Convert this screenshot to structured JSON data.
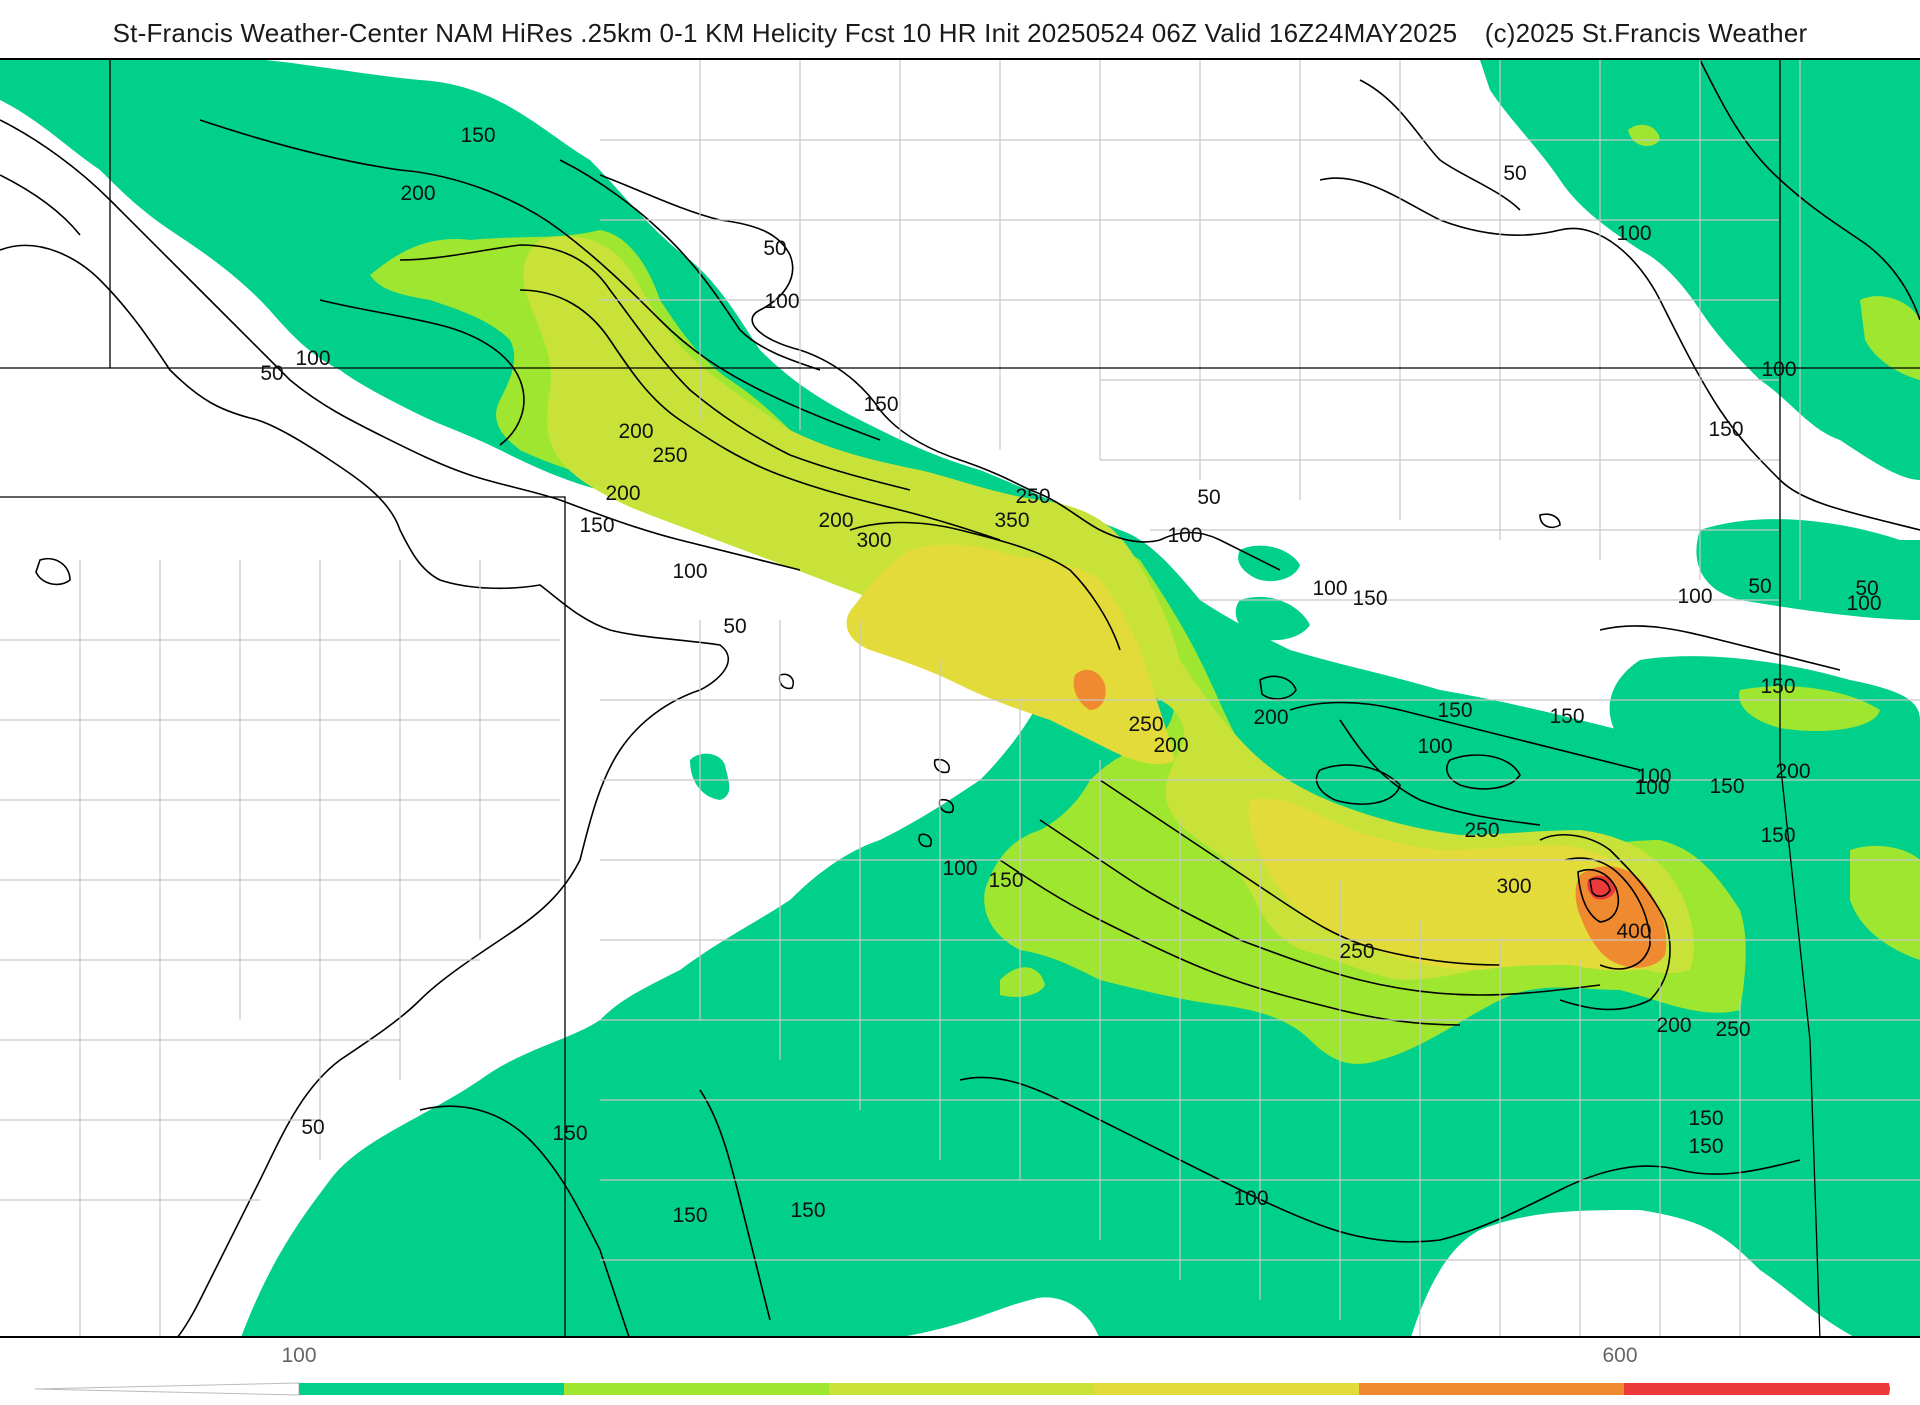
{
  "header": {
    "title": "St-Francis Weather-Center NAM HiRes .25km 0-1 KM Helicity Fcst 10 HR Init 20250524 06Z  Valid 16Z24MAY2025",
    "copyright": "(c)2025 St.Francis Weather"
  },
  "colors": {
    "level_100": "#00d08a",
    "level_150": "#00d08a",
    "level_200": "#9ee62f",
    "level_250": "#c8e23a",
    "level_300": "#e3db3a",
    "level_400": "#ef8a30",
    "level_500": "#ec3a3a",
    "level_600": "#e01c86",
    "border": "#000000",
    "county": "#c8c8c8"
  },
  "contour_labels": [
    {
      "value": "150"
    },
    {
      "value": "200"
    },
    {
      "value": "50"
    },
    {
      "value": "100"
    },
    {
      "value": "100"
    },
    {
      "value": "50"
    },
    {
      "value": "200"
    },
    {
      "value": "150"
    },
    {
      "value": "200"
    },
    {
      "value": "250"
    },
    {
      "value": "200"
    },
    {
      "value": "150"
    },
    {
      "value": "250"
    },
    {
      "value": "350"
    },
    {
      "value": "300"
    },
    {
      "value": "50"
    },
    {
      "value": "100"
    },
    {
      "value": "100"
    },
    {
      "value": "50"
    },
    {
      "value": "100"
    },
    {
      "value": "150"
    },
    {
      "value": "250"
    },
    {
      "value": "200"
    },
    {
      "value": "200"
    },
    {
      "value": "150"
    },
    {
      "value": "150"
    },
    {
      "value": "100"
    },
    {
      "value": "100"
    },
    {
      "value": "150"
    },
    {
      "value": "100"
    },
    {
      "value": "150"
    },
    {
      "value": "250"
    },
    {
      "value": "300"
    },
    {
      "value": "400"
    },
    {
      "value": "250"
    },
    {
      "value": "200"
    },
    {
      "value": "250"
    },
    {
      "value": "150"
    },
    {
      "value": "50"
    },
    {
      "value": "100"
    },
    {
      "value": "100"
    },
    {
      "value": "150"
    },
    {
      "value": "200"
    },
    {
      "value": "150"
    },
    {
      "value": "150"
    },
    {
      "value": "150"
    },
    {
      "value": "150"
    },
    {
      "value": "150"
    },
    {
      "value": "150"
    },
    {
      "value": "100"
    },
    {
      "value": "50"
    },
    {
      "value": "100"
    },
    {
      "value": "50"
    },
    {
      "value": "100"
    },
    {
      "value": "100"
    },
    {
      "value": "50"
    }
  ],
  "legend": {
    "tick_labels": [
      "100",
      "600"
    ],
    "bins": [
      "#00d08a",
      "#9ee62f",
      "#c8e23a",
      "#e3db3a",
      "#ef8a30",
      "#ec3a3a",
      "#e01c86"
    ]
  }
}
